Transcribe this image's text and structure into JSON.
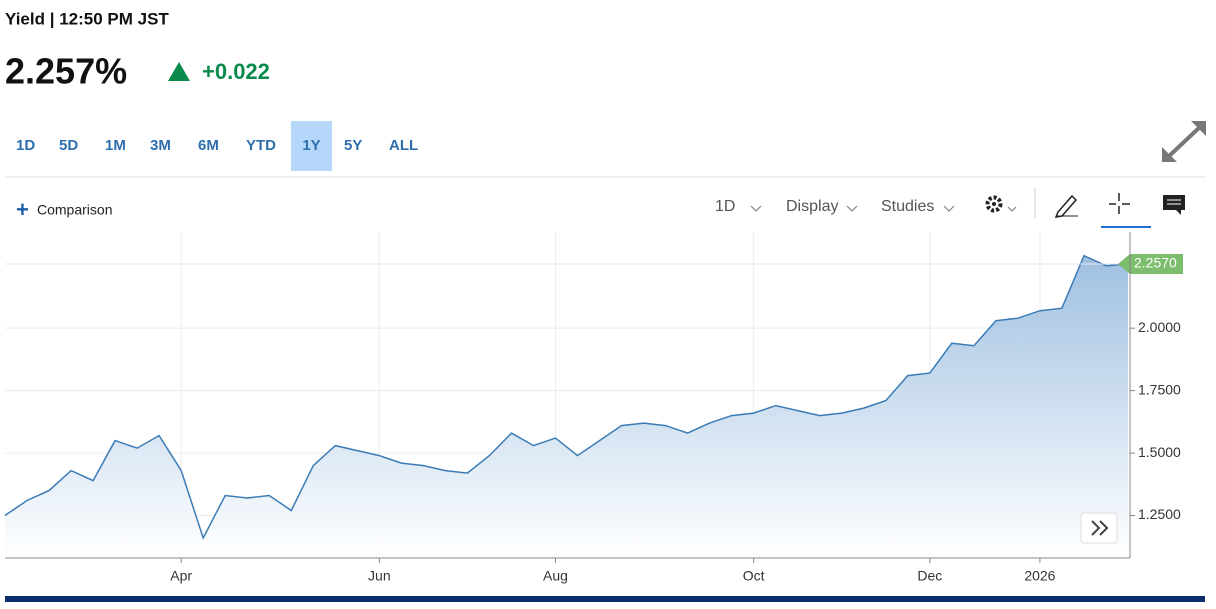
{
  "header": {
    "title": "Yield | 12:50 PM JST",
    "price": "2.257%",
    "change": "+0.022"
  },
  "ranges": [
    "1D",
    "5D",
    "1M",
    "3M",
    "6M",
    "YTD",
    "1Y",
    "5Y",
    "ALL"
  ],
  "selected_range": 6,
  "toolbar": {
    "comparison": "Comparison",
    "interval": "1D",
    "display": "Display",
    "studies": "Studies"
  },
  "chart_data": {
    "type": "area",
    "categories": [
      null,
      null,
      null,
      null,
      null,
      null,
      null,
      null,
      "Apr",
      null,
      null,
      null,
      null,
      null,
      null,
      null,
      null,
      "Jun",
      null,
      null,
      null,
      null,
      null,
      null,
      null,
      "Aug",
      null,
      null,
      null,
      null,
      null,
      null,
      null,
      null,
      "Oct",
      null,
      null,
      null,
      null,
      null,
      null,
      null,
      "Dec",
      null,
      null,
      null,
      null,
      "2026",
      null,
      null,
      null,
      null
    ],
    "values": [
      1.25,
      1.31,
      1.35,
      1.43,
      1.39,
      1.55,
      1.52,
      1.57,
      1.43,
      1.16,
      1.33,
      1.32,
      1.33,
      1.27,
      1.45,
      1.53,
      1.51,
      1.49,
      1.46,
      1.45,
      1.43,
      1.42,
      1.49,
      1.58,
      1.53,
      1.56,
      1.49,
      1.55,
      1.61,
      1.62,
      1.61,
      1.58,
      1.62,
      1.65,
      1.66,
      1.69,
      1.67,
      1.65,
      1.66,
      1.68,
      1.71,
      1.81,
      1.82,
      1.94,
      1.93,
      2.03,
      2.04,
      2.07,
      2.08,
      2.29,
      2.25,
      2.257
    ],
    "color": "#3b7bb6",
    "ylim": [
      1.08,
      2.385
    ],
    "yticks": [
      {
        "value": 1.25,
        "label": "1.2500"
      },
      {
        "value": 1.5,
        "label": "1.5000"
      },
      {
        "value": 1.75,
        "label": "1.7500"
      },
      {
        "value": 2.0,
        "label": "2.0000"
      }
    ],
    "grid": true,
    "last_label": "2.2570"
  }
}
